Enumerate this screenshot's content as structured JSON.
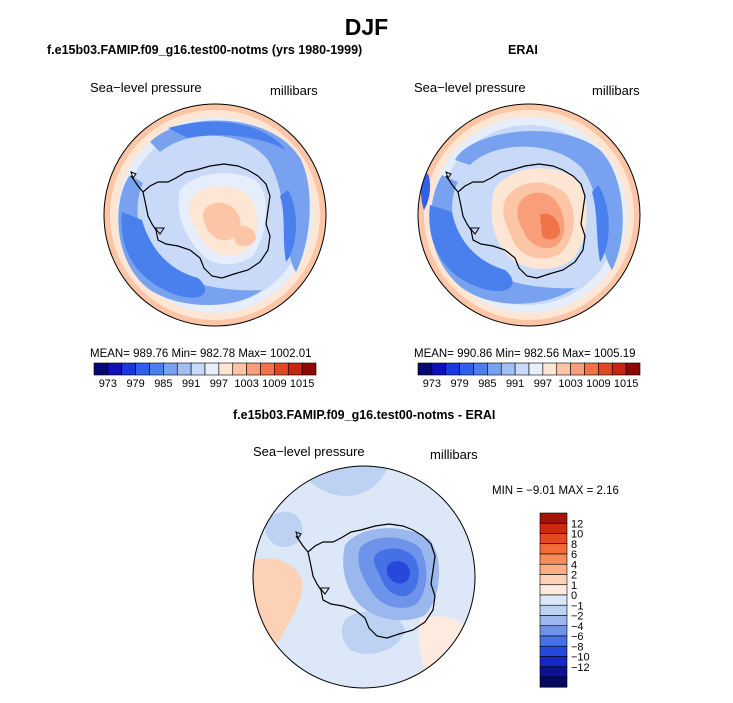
{
  "figure": {
    "title": "DJF"
  },
  "chart_data": [
    {
      "type": "heatmap",
      "projection": "south-polar-stereographic",
      "title": "f.e15b03.FAMIP.f09_g16.test00-notms (yrs 1980-1999)",
      "left_label": "Sea−level pressure",
      "right_label": "millibars",
      "stats_text": "MEAN= 989.76   Min= 982.78   Max= 1002.01",
      "mean": 989.76,
      "min": 982.78,
      "max": 1002.01,
      "colorbar": {
        "ticks": [
          "973",
          "979",
          "985",
          "991",
          "997",
          "1003",
          "1009",
          "1015"
        ],
        "levels": [
          970,
          973,
          976,
          979,
          982,
          985,
          988,
          991,
          994,
          997,
          1000,
          1003,
          1006,
          1009,
          1012,
          1015
        ],
        "colors": [
          "#080872",
          "#1010b8",
          "#1a38e0",
          "#3060ea",
          "#4a80ee",
          "#78a2f0",
          "#a2bff4",
          "#c8daf8",
          "#e6eefb",
          "#fde6d4",
          "#fcc5a6",
          "#f89e78",
          "#f07448",
          "#e04a22",
          "#c22810",
          "#8a0a04"
        ]
      }
    },
    {
      "type": "heatmap",
      "projection": "south-polar-stereographic",
      "title": "ERAI",
      "left_label": "Sea−level pressure",
      "right_label": "millibars",
      "stats_text": "MEAN= 990.86   Min= 982.56   Max= 1005.19",
      "mean": 990.86,
      "min": 982.56,
      "max": 1005.19,
      "colorbar": {
        "ticks": [
          "973",
          "979",
          "985",
          "991",
          "997",
          "1003",
          "1009",
          "1015"
        ],
        "levels": [
          970,
          973,
          976,
          979,
          982,
          985,
          988,
          991,
          994,
          997,
          1000,
          1003,
          1006,
          1009,
          1012,
          1015
        ],
        "colors": [
          "#080872",
          "#1010b8",
          "#1a38e0",
          "#3060ea",
          "#4a80ee",
          "#78a2f0",
          "#a2bff4",
          "#c8daf8",
          "#e6eefb",
          "#fde6d4",
          "#fcc5a6",
          "#f89e78",
          "#f07448",
          "#e04a22",
          "#c22810",
          "#8a0a04"
        ]
      }
    },
    {
      "type": "heatmap",
      "projection": "south-polar-stereographic",
      "title": "f.e15b03.FAMIP.f09_g16.test00-notms - ERAI",
      "left_label": "Sea−level pressure",
      "right_label": "millibars",
      "stats_text": "MIN =   −9.01  MAX =    2.16",
      "min": -9.01,
      "max": 2.16,
      "colorbar": {
        "ticks": [
          "12",
          "10",
          "8",
          "6",
          "4",
          "2",
          "1",
          "0",
          "−1",
          "−2",
          "−4",
          "−6",
          "−8",
          "−10",
          "−12"
        ],
        "colors": [
          "#a51208",
          "#cc2a0c",
          "#e44a20",
          "#f26b38",
          "#f78c58",
          "#fbad85",
          "#fdd1b5",
          "#feeadf",
          "#dce8f7",
          "#bdd2f2",
          "#9ab8ee",
          "#6e93ea",
          "#4670e6",
          "#2848dc",
          "#1428c2",
          "#0c1290",
          "#060a5e"
        ]
      }
    }
  ]
}
